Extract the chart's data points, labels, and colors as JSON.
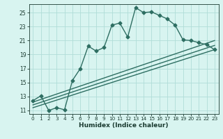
{
  "xlabel": "Humidex (Indice chaleur)",
  "bg_color": "#d8f4f0",
  "grid_color": "#b0ddd8",
  "line_color": "#2e6e62",
  "xlim": [
    -0.5,
    23.5
  ],
  "ylim": [
    10.5,
    26.2
  ],
  "xticks": [
    0,
    1,
    2,
    3,
    4,
    5,
    6,
    7,
    8,
    9,
    10,
    11,
    12,
    13,
    14,
    15,
    16,
    17,
    18,
    19,
    20,
    21,
    22,
    23
  ],
  "yticks": [
    11,
    13,
    15,
    17,
    19,
    21,
    23,
    25
  ],
  "main_x": [
    0,
    1,
    2,
    3,
    4,
    5,
    6,
    7,
    8,
    9,
    10,
    11,
    12,
    13,
    14,
    15,
    16,
    17,
    18,
    19,
    20,
    21,
    22,
    23
  ],
  "main_y": [
    12.4,
    13.1,
    11.0,
    11.4,
    11.1,
    15.3,
    17.0,
    20.2,
    19.5,
    20.0,
    23.2,
    23.5,
    21.5,
    25.7,
    25.0,
    25.1,
    24.6,
    24.1,
    23.2,
    21.1,
    21.0,
    20.7,
    20.4,
    19.7
  ],
  "line2_x": [
    0,
    23
  ],
  "line2_y": [
    12.2,
    21.0
  ],
  "line3_x": [
    0,
    23
  ],
  "line3_y": [
    11.8,
    20.3
  ],
  "line4_x": [
    0,
    23
  ],
  "line4_y": [
    11.4,
    19.7
  ],
  "marker": "D",
  "markersize": 2.5,
  "linewidth": 1.0
}
